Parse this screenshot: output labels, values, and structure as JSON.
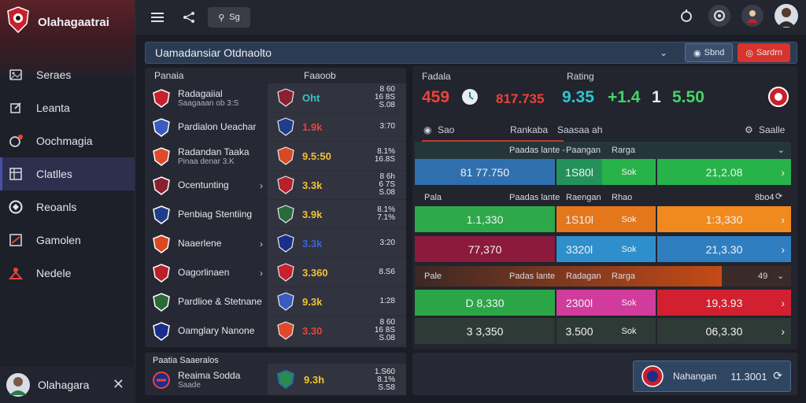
{
  "app": {
    "title": "Olahagaatrai"
  },
  "sidebar": {
    "items": [
      {
        "label": "Seraes",
        "icon": "image-icon"
      },
      {
        "label": "Leanta",
        "icon": "pen-icon"
      },
      {
        "label": "Oochmagia",
        "icon": "bell-icon"
      },
      {
        "label": "Clatlles",
        "icon": "grid-icon"
      },
      {
        "label": "Reoanls",
        "icon": "shield-icon"
      },
      {
        "label": "Gamolen",
        "icon": "chart-icon"
      },
      {
        "label": "Nedele",
        "icon": "puzzle-icon"
      }
    ],
    "active_index": 3,
    "user": {
      "name": "Olahagara"
    }
  },
  "topbar": {
    "search_chip": "Sg"
  },
  "header": {
    "title": "Uamadansiar Otdnaolto",
    "btn_primary": "Sbnd",
    "btn_danger": "Sardrn"
  },
  "left_panel": {
    "col_team": "Panaia",
    "col_score": "Faaoob",
    "teams": [
      {
        "name": "Radagaiial",
        "sub": "Saagaaan ob 3:S",
        "score": "Oht",
        "r1": "8 60",
        "r2": "16 8S",
        "r3": "S.08",
        "score_color": "#34c3c6"
      },
      {
        "name": "Pardialon Ueachar",
        "sub": "",
        "score": "1.9k",
        "r1": "",
        "r2": "3:70",
        "r3": "",
        "score_color": "#e9443a"
      },
      {
        "name": "Radandan Taaka",
        "sub": "Pinaa denar 3.K",
        "score": "9.5:50",
        "r1": "8.1%",
        "r2": "16.8S",
        "r3": "",
        "score_color": "#f2c230"
      },
      {
        "name": "Ocentunting",
        "sub": "",
        "score": "3.3k",
        "r1": "8 6h",
        "r2": "6 7S",
        "r3": "S.08",
        "score_color": "#f2c230"
      },
      {
        "name": "Penbiag Stentiing",
        "sub": "",
        "score": "3.9k",
        "r1": "8.1%",
        "r2": "7.1%",
        "r3": "",
        "score_color": "#f2c230"
      },
      {
        "name": "Naaerlene",
        "sub": "",
        "score": "3.3k",
        "r1": "",
        "r2": "3:20",
        "r3": "",
        "score_color": "#3b64d6"
      },
      {
        "name": "Oagorlinaen",
        "sub": "",
        "score": "3.360",
        "r1": "",
        "r2": "8.S6",
        "r3": "",
        "score_color": "#f2c230"
      },
      {
        "name": "Pardlioe & Stetnane",
        "sub": "",
        "score": "9.3k",
        "r1": "",
        "r2": "1:28",
        "r3": "",
        "score_color": "#f2c230"
      },
      {
        "name": "Oamglary Nanone",
        "sub": "",
        "score": "3.30",
        "r1": "8 60",
        "r2": "16 8S",
        "r3": "S.08",
        "score_color": "#e9443a"
      }
    ]
  },
  "bottom_left": {
    "caption": "Paatia Saaeralos",
    "team": "Reaima Sodda",
    "sub": "Saade",
    "score": "9.3h",
    "r1": "1.S60",
    "r2": "8.1%",
    "r3": "S.S8"
  },
  "right_panel": {
    "stats": [
      {
        "label": "Fadala",
        "value": "459",
        "color": "#e9443a"
      },
      {
        "label": "",
        "value": "817.735",
        "color": "#e9443a"
      },
      {
        "label": "Rating",
        "value": "9.35",
        "color": "#2cc6d0"
      },
      {
        "label": "",
        "value": "+1.4",
        "color": "#46d36a"
      },
      {
        "label": "",
        "value": "1",
        "color": "#e9eaee"
      },
      {
        "label": "",
        "value": "5.50",
        "color": "#46d36a"
      }
    ],
    "mk_head": {
      "a": "Sao",
      "b": "Rankaba",
      "c": "Saasaa ah",
      "d": "Saalle"
    },
    "section1": {
      "col1": "Paadas lante -",
      "col2": "Paangan",
      "col3": "Rarga"
    },
    "section2": {
      "left": "Pala",
      "col1": "Paadas lante",
      "col2": "Raengan",
      "col3": "Rhao",
      "right": "8bo4"
    },
    "section3": {
      "left": "Pale",
      "col1": "Padas lante",
      "col2": "Radagan",
      "col3": "Rarga",
      "right": "49"
    },
    "rows": [
      {
        "c1": "81 77.750",
        "c2": "1S80l",
        "c2b": "Sok",
        "c3": "21,2.08",
        "end": "",
        "colors": [
          "#2f6fae",
          "#22925a",
          "#28b24a",
          "#28b24a"
        ]
      },
      {
        "c1": "1.1,330",
        "c2": "1S10l",
        "c2b": "Sok",
        "c3": "1:3,330",
        "end": "",
        "colors": [
          "#2ea84a",
          "#e4761c",
          "#e4761c",
          "#f08a1f"
        ]
      },
      {
        "c1": "77,370",
        "c2": "3320l",
        "c2b": "Sok",
        "c3": "21,3.30",
        "end": "",
        "colors": [
          "#8c1a3c",
          "#2f8fcc",
          "#2f8fcc",
          "#2f7fc0"
        ]
      },
      {
        "c1": "D 8,330",
        "c2": "2300l",
        "c2b": "Sok",
        "c3": "19,3.93",
        "end": "",
        "colors": [
          "#2aa646",
          "#d13b9c",
          "#d13b9c",
          "#d22030"
        ]
      },
      {
        "c1": "3 3,350",
        "c2": "3.500",
        "c2b": "Sok",
        "c3": "06,3.30",
        "end": "",
        "colors": [
          "#2e3a35",
          "#2e3a35",
          "#2e3a35",
          "#2e3a35"
        ]
      }
    ]
  },
  "bottom_right": {
    "card_label": "Nahangan",
    "card_value": "11.3001"
  }
}
